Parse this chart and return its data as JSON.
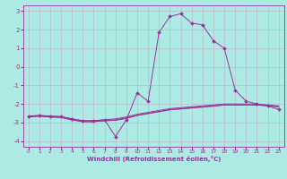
{
  "xlabel": "Windchill (Refroidissement éolien,°C)",
  "bg_color": "#aeeae4",
  "grid_color": "#bbbbcc",
  "line_color": "#993399",
  "xlim": [
    -0.5,
    23.5
  ],
  "ylim": [
    -4.3,
    3.3
  ],
  "xticks": [
    0,
    1,
    2,
    3,
    4,
    5,
    6,
    7,
    8,
    9,
    10,
    11,
    12,
    13,
    14,
    15,
    16,
    17,
    18,
    19,
    20,
    21,
    22,
    23
  ],
  "yticks": [
    -4,
    -3,
    -2,
    -1,
    0,
    1,
    2,
    3
  ],
  "series_plain": [
    [
      -2.7,
      -2.65,
      -2.7,
      -2.72,
      -2.85,
      -2.95,
      -2.95,
      -2.9,
      -2.85,
      -2.75,
      -2.6,
      -2.5,
      -2.4,
      -2.3,
      -2.25,
      -2.2,
      -2.15,
      -2.1,
      -2.05,
      -2.05,
      -2.05,
      -2.05,
      -2.1,
      -2.15
    ],
    [
      -2.7,
      -2.65,
      -2.7,
      -2.72,
      -2.85,
      -2.95,
      -2.95,
      -2.9,
      -2.88,
      -2.78,
      -2.62,
      -2.52,
      -2.42,
      -2.32,
      -2.27,
      -2.22,
      -2.17,
      -2.12,
      -2.05,
      -2.05,
      -2.05,
      -2.05,
      -2.1,
      -2.15
    ],
    [
      -2.65,
      -2.62,
      -2.65,
      -2.68,
      -2.8,
      -2.9,
      -2.9,
      -2.85,
      -2.8,
      -2.7,
      -2.55,
      -2.45,
      -2.35,
      -2.25,
      -2.2,
      -2.15,
      -2.1,
      -2.05,
      -2.0,
      -2.0,
      -2.0,
      -2.0,
      -2.05,
      -2.1
    ]
  ],
  "series_main": [
    -2.65,
    -2.62,
    -2.65,
    -2.68,
    -2.8,
    -2.9,
    -2.9,
    -2.85,
    -3.75,
    -2.85,
    -1.4,
    -1.85,
    1.85,
    2.7,
    2.85,
    2.35,
    2.25,
    1.4,
    1.0,
    -1.25,
    -1.85,
    -2.0,
    -2.1,
    -2.3
  ]
}
